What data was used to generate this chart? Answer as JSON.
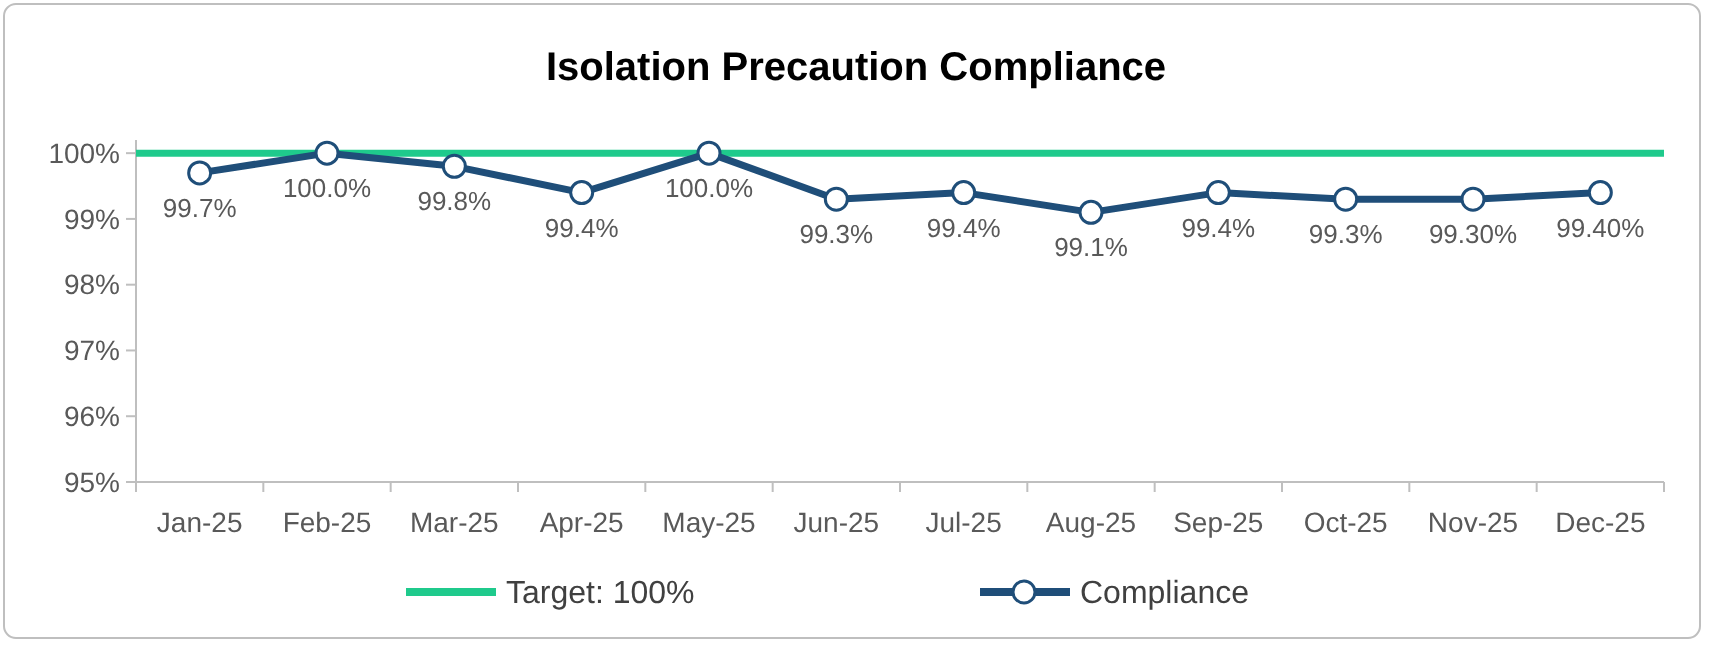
{
  "chart_data": {
    "type": "line",
    "title": "Isolation Precaution Compliance",
    "categories": [
      "Jan-25",
      "Feb-25",
      "Mar-25",
      "Apr-25",
      "May-25",
      "Jun-25",
      "Jul-25",
      "Aug-25",
      "Sep-25",
      "Oct-25",
      "Nov-25",
      "Dec-25"
    ],
    "series": [
      {
        "name": "Compliance",
        "color": "#1f4e79",
        "values": [
          99.7,
          100,
          99.8,
          99.4,
          100,
          99.3,
          99.4,
          99.1,
          99.4,
          99.3,
          99.3,
          99.4
        ],
        "value_labels": [
          "99.7%",
          "100.0%",
          "99.8%",
          "99.4%",
          "100.0%",
          "99.3%",
          "99.4%",
          "99.1%",
          "99.4%",
          "99.3%",
          "99.30%",
          "99.40%"
        ]
      }
    ],
    "ref_lines": [
      {
        "axis": "y",
        "value": 100,
        "label": "Target: 100%",
        "color": "#1fca8c"
      }
    ],
    "ylim": [
      95,
      100.2
    ],
    "yticks": [
      {
        "value": 95,
        "label": "95%"
      },
      {
        "value": 96,
        "label": "96%"
      },
      {
        "value": 97,
        "label": "97%"
      },
      {
        "value": 98,
        "label": "98%"
      },
      {
        "value": 99,
        "label": "99%"
      },
      {
        "value": 100,
        "label": "100%"
      }
    ],
    "marker": "circle",
    "line_style": "solid",
    "grid": false,
    "legend": "bottom"
  }
}
